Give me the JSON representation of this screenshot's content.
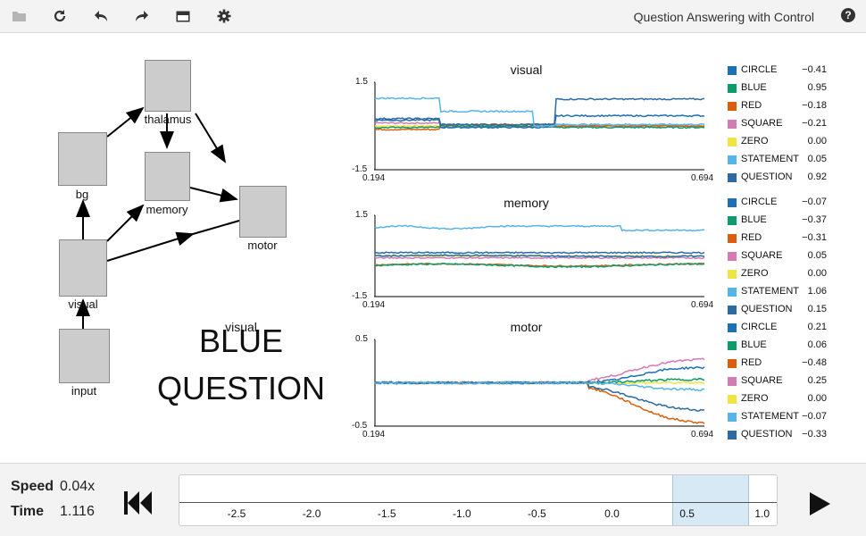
{
  "toolbar": {
    "title": "Question Answering with Control",
    "icons": [
      "folder-open-icon",
      "refresh-icon",
      "undo-icon",
      "redo-icon",
      "card-icon",
      "gear-icon",
      "help-icon"
    ],
    "help_label": "?"
  },
  "network": {
    "nodes": [
      {
        "id": "thalamus",
        "label": "thalamus"
      },
      {
        "id": "bg",
        "label": "bg"
      },
      {
        "id": "memory",
        "label": "memory"
      },
      {
        "id": "motor",
        "label": "motor"
      },
      {
        "id": "visual",
        "label": "visual"
      },
      {
        "id": "input",
        "label": "input"
      }
    ],
    "floating_label": "visual",
    "display_word1": "BLUE",
    "display_word2": "QUESTION"
  },
  "chart_data": [
    {
      "type": "line",
      "title": "visual",
      "ylim": [
        -1.5,
        1.5
      ],
      "yticks": [
        "1.5",
        "-1.5"
      ],
      "xlim": [
        0.194,
        0.694
      ],
      "xticks": [
        "0.194",
        "0.694"
      ],
      "series": [
        {
          "name": "CIRCLE",
          "value": "−0.41",
          "color": "#1f6fb5"
        },
        {
          "name": "BLUE",
          "value": "0.95",
          "color": "#0f9a6e"
        },
        {
          "name": "RED",
          "value": "−0.18",
          "color": "#d95f0e"
        },
        {
          "name": "SQUARE",
          "value": "−0.21",
          "color": "#d27bb5"
        },
        {
          "name": "ZERO",
          "value": "0.00",
          "color": "#f0e442"
        },
        {
          "name": "STATEMENT",
          "value": "0.05",
          "color": "#56b4e9"
        },
        {
          "name": "QUESTION",
          "value": "0.92",
          "color": "#2c6aa0"
        }
      ]
    },
    {
      "type": "line",
      "title": "memory",
      "ylim": [
        -1.5,
        1.5
      ],
      "yticks": [
        "1.5",
        "-1.5"
      ],
      "xlim": [
        0.194,
        0.694
      ],
      "xticks": [
        "0.194",
        "0.694"
      ],
      "series": [
        {
          "name": "CIRCLE",
          "value": "−0.07",
          "color": "#1f6fb5"
        },
        {
          "name": "BLUE",
          "value": "−0.37",
          "color": "#0f9a6e"
        },
        {
          "name": "RED",
          "value": "−0.31",
          "color": "#d95f0e"
        },
        {
          "name": "SQUARE",
          "value": "0.05",
          "color": "#d27bb5"
        },
        {
          "name": "ZERO",
          "value": "0.00",
          "color": "#f0e442"
        },
        {
          "name": "STATEMENT",
          "value": "1.06",
          "color": "#56b4e9"
        },
        {
          "name": "QUESTION",
          "value": "0.15",
          "color": "#2c6aa0"
        }
      ]
    },
    {
      "type": "line",
      "title": "motor",
      "ylim": [
        -0.5,
        0.5
      ],
      "yticks": [
        "0.5",
        "-0.5"
      ],
      "xlim": [
        0.194,
        0.694
      ],
      "xticks": [
        "0.194",
        "0.694"
      ],
      "series": [
        {
          "name": "CIRCLE",
          "value": "0.21",
          "color": "#1f6fb5"
        },
        {
          "name": "BLUE",
          "value": "0.06",
          "color": "#0f9a6e"
        },
        {
          "name": "RED",
          "value": "−0.48",
          "color": "#d95f0e"
        },
        {
          "name": "SQUARE",
          "value": "0.25",
          "color": "#d27bb5"
        },
        {
          "name": "ZERO",
          "value": "0.00",
          "color": "#f0e442"
        },
        {
          "name": "STATEMENT",
          "value": "−0.07",
          "color": "#56b4e9"
        },
        {
          "name": "QUESTION",
          "value": "−0.33",
          "color": "#2c6aa0"
        }
      ]
    }
  ],
  "controls": {
    "speed_label": "Speed",
    "speed_value": "0.04x",
    "time_label": "Time",
    "time_value": "1.116",
    "timeline_ticks": [
      "-2.5",
      "-2.0",
      "-1.5",
      "-1.0",
      "-0.5",
      "0.0",
      "0.5",
      "1.0"
    ],
    "selection_range": [
      0.4,
      0.9
    ]
  }
}
